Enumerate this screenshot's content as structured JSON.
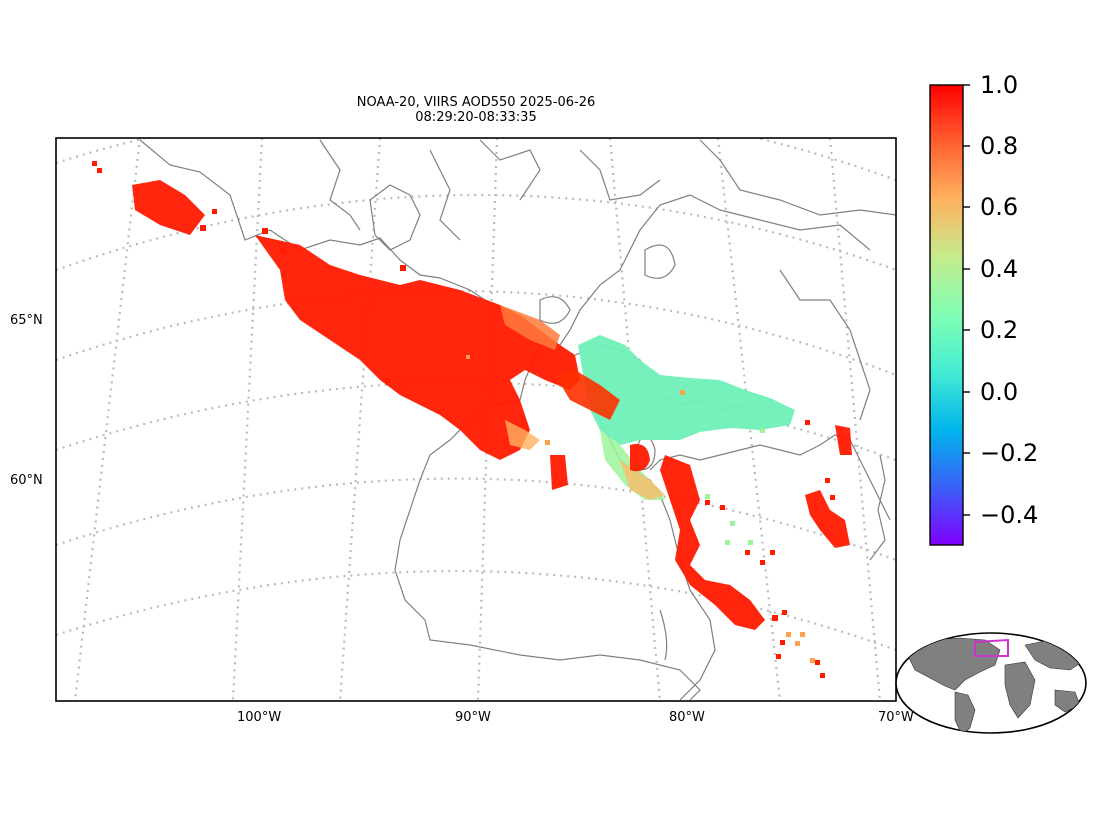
{
  "title": {
    "line1": "NOAA-20, VIIRS AOD550 2025-06-26",
    "line2": "08:29:20-08:33:35"
  },
  "lat_labels": [
    "65°N",
    "60°N"
  ],
  "lon_labels": [
    "100°W",
    "90°W",
    "80°W",
    "70°W"
  ],
  "colorbar": {
    "tick_labels": [
      "1.0",
      "0.8",
      "0.6",
      "0.4",
      "0.2",
      "0.0",
      "−0.2",
      "−0.4"
    ],
    "range": [
      -0.5,
      1.0
    ],
    "colormap": "rainbow",
    "colors": [
      "#8000ff",
      "#3a5ff7",
      "#00b4eb",
      "#44ecd4",
      "#80ffb4",
      "#c4eb8d",
      "#ffb360",
      "#ff6030",
      "#ff0000"
    ]
  },
  "map": {
    "projection": "lambert-conformal",
    "coastline_color": "#808080",
    "graticule_color": "#bbbbbb",
    "inset": "global-overview",
    "inset_land_color": "#808080",
    "inset_box_color": "#cc33cc"
  }
}
